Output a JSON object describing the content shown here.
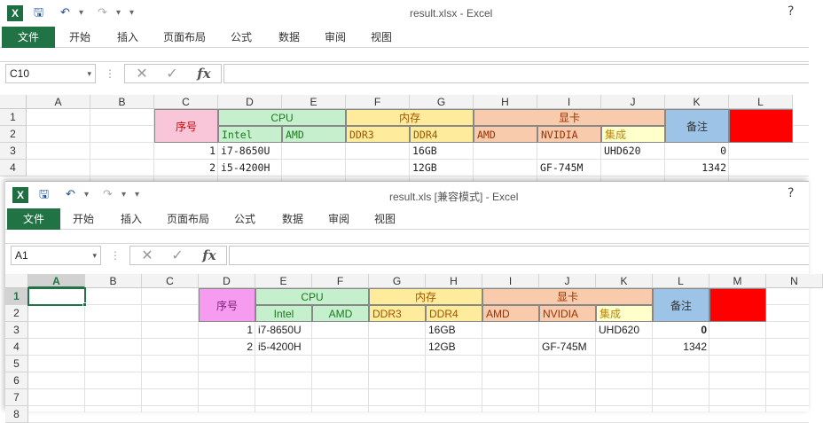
{
  "back_window": {
    "title": "result.xlsx - Excel",
    "name_box": "C10",
    "columns": [
      "A",
      "B",
      "C",
      "D",
      "E",
      "F",
      "G",
      "H",
      "I",
      "J",
      "K",
      "L"
    ],
    "rows": [
      "1",
      "2",
      "3",
      "4"
    ]
  },
  "front_window": {
    "title": "result.xls  [兼容模式] - Excel",
    "name_box": "A1",
    "columns": [
      "A",
      "B",
      "C",
      "D",
      "E",
      "F",
      "G",
      "H",
      "I",
      "J",
      "K",
      "L",
      "M",
      "N"
    ],
    "rows": [
      "1",
      "2",
      "3",
      "4",
      "5",
      "6",
      "7",
      "8"
    ]
  },
  "ribbon_tabs": [
    "文件",
    "开始",
    "插入",
    "页面布局",
    "公式",
    "数据",
    "审阅",
    "视图"
  ],
  "quick_access": {
    "save": "🖫",
    "undo": "↶",
    "redo": "↷",
    "customize": "▾"
  },
  "window_buttons": {
    "help": "?"
  },
  "formula_bar": {
    "cancel": "✕",
    "enter": "✓",
    "fx": "fx",
    "sep": "⋮"
  },
  "table": {
    "seq": "序号",
    "cpu": "CPU",
    "mem": "内存",
    "gpu": "显卡",
    "note": "备注",
    "intel": "Intel",
    "amd": "AMD",
    "ddr3": "DDR3",
    "ddr4": "DDR4",
    "gpu_amd": "AMD",
    "nvidia": "NVIDIA",
    "integrated": "集成",
    "rows": [
      {
        "seq": "1",
        "intel": "i7-8650U",
        "ddr4": "16GB",
        "nvidia": "",
        "integrated": "UHD620",
        "note": "0"
      },
      {
        "seq": "2",
        "intel": "i5-4200H",
        "ddr4": "12GB",
        "nvidia": "GF-745M",
        "integrated": "",
        "note": "1342"
      }
    ]
  },
  "colors": {
    "excel_green": "#217346",
    "seq_fill": "#f8c6d8",
    "seq_fill_front": "#f59cf0",
    "cpu_fill": "#c6efce",
    "mem_fill": "#ffeb9c",
    "gpu_fill": "#f8cbad",
    "integrated_fill": "#ffffcc",
    "note_fill": "#9dc3e6",
    "red_fill": "#ff0000"
  }
}
